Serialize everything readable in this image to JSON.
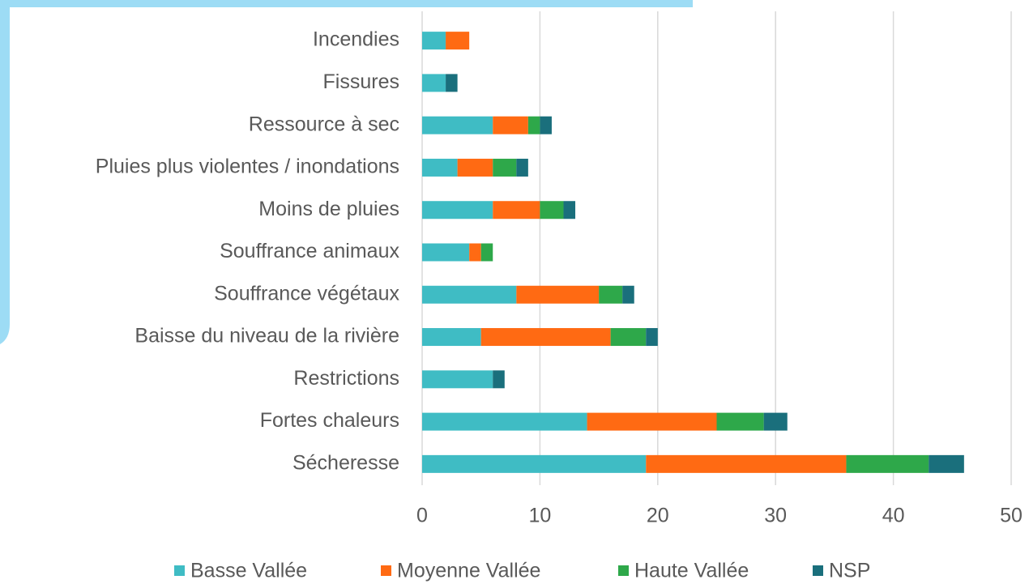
{
  "chart_data": {
    "type": "stacked_barh",
    "categories": [
      "Incendies",
      "Fissures",
      "Ressource à sec",
      "Pluies plus violentes / inondations",
      "Moins de pluies",
      "Souffrance animaux",
      "Souffrance végétaux",
      "Baisse du niveau de la rivière",
      "Restrictions",
      "Fortes chaleurs",
      "Sécheresse"
    ],
    "series": [
      {
        "name": "Basse Vallée",
        "color": "#3fbcc4",
        "values": [
          2,
          2,
          6,
          3,
          6,
          4,
          8,
          5,
          6,
          14,
          19
        ]
      },
      {
        "name": "Moyenne Vallée",
        "color": "#ff6a13",
        "values": [
          2,
          0,
          3,
          3,
          4,
          1,
          7,
          11,
          0,
          11,
          17
        ]
      },
      {
        "name": "Haute Vallée",
        "color": "#2ea84a",
        "values": [
          0,
          0,
          1,
          2,
          2,
          1,
          2,
          3,
          0,
          4,
          7
        ]
      },
      {
        "name": "NSP",
        "color": "#1a6f7c",
        "values": [
          0,
          1,
          1,
          1,
          1,
          0,
          1,
          1,
          1,
          2,
          3
        ]
      }
    ],
    "xlim": [
      0,
      50
    ],
    "xticks": [
      0,
      10,
      20,
      30,
      40,
      50
    ],
    "grid": true,
    "legend": "bottom"
  }
}
